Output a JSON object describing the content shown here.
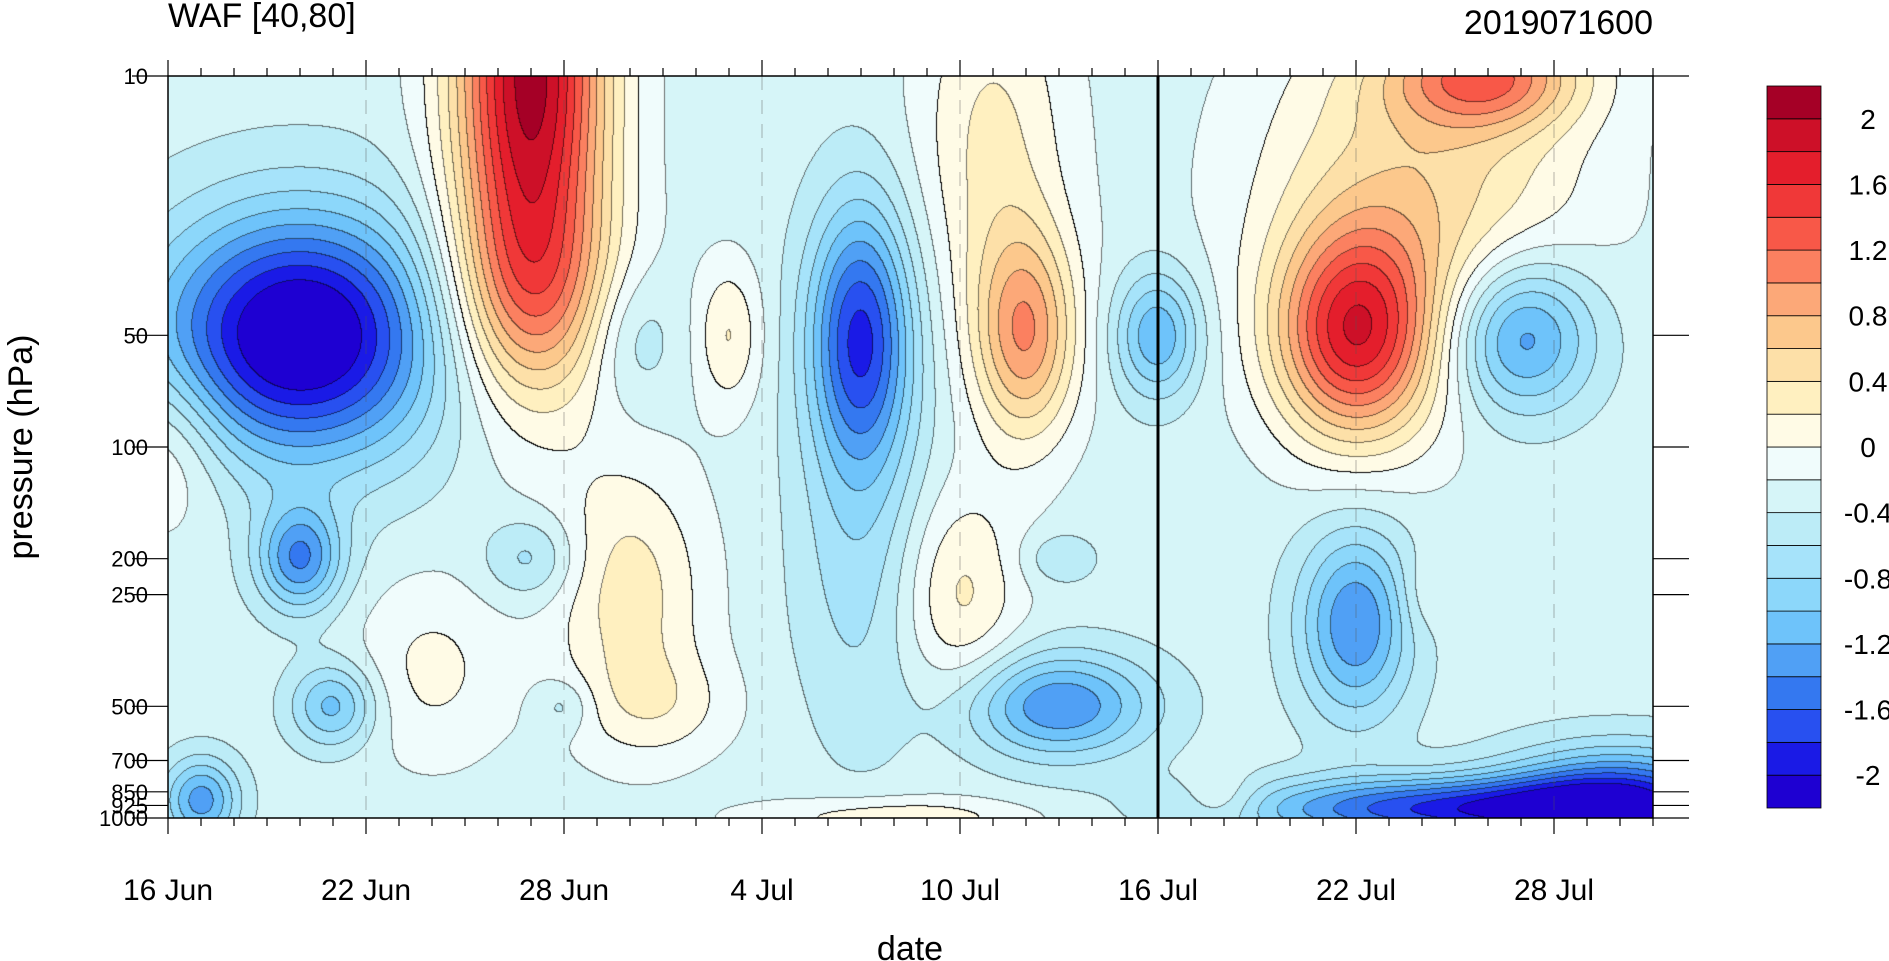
{
  "chart_data": {
    "type": "heatmap",
    "subtype": "filled-contour",
    "title": "WAF [40,80]",
    "date_label": "2019071600",
    "xlabel": "date",
    "ylabel": "pressure (hPa)",
    "y_scale": "log",
    "y_reversed": true,
    "x_range": [
      "2019-06-16",
      "2019-07-31"
    ],
    "y_range": [
      1000,
      10
    ],
    "x_ticks": [
      {
        "date": "2019-06-16",
        "label": "16 Jun"
      },
      {
        "date": "2019-06-22",
        "label": "22 Jun"
      },
      {
        "date": "2019-06-28",
        "label": "28 Jun"
      },
      {
        "date": "2019-07-04",
        "label": "4 Jul"
      },
      {
        "date": "2019-07-10",
        "label": "10 Jul"
      },
      {
        "date": "2019-07-16",
        "label": "16 Jul"
      },
      {
        "date": "2019-07-22",
        "label": "22 Jul"
      },
      {
        "date": "2019-07-28",
        "label": "28 Jul"
      }
    ],
    "y_ticks": [
      {
        "value": 10,
        "label": "10"
      },
      {
        "value": 50,
        "label": "50"
      },
      {
        "value": 100,
        "label": "100"
      },
      {
        "value": 200,
        "label": "200"
      },
      {
        "value": 250,
        "label": "250"
      },
      {
        "value": 500,
        "label": "500"
      },
      {
        "value": 700,
        "label": "700"
      },
      {
        "value": 850,
        "label": "850"
      },
      {
        "value": 925,
        "label": "925"
      },
      {
        "value": 1000,
        "label": "1000"
      }
    ],
    "vertical_marker_date": "2019-07-16",
    "contour_levels": [
      -2.2,
      -2.0,
      -1.8,
      -1.6,
      -1.4,
      -1.2,
      -1.0,
      -0.8,
      -0.6,
      -0.4,
      -0.2,
      0,
      0.2,
      0.4,
      0.6,
      0.8,
      1.0,
      1.2,
      1.4,
      1.6,
      1.8,
      2.0,
      2.2
    ],
    "colorbar": {
      "colors": [
        "#1e00d2",
        "#1a1ae6",
        "#2850f0",
        "#3478f0",
        "#50a0f5",
        "#6ec3fa",
        "#8cd7fa",
        "#a6e3fa",
        "#bcecf7",
        "#d6f5f8",
        "#f0fcfc",
        "#fffbe6",
        "#fff0c0",
        "#fde0a8",
        "#fcc88c",
        "#fca878",
        "#fb8060",
        "#f85848",
        "#f03838",
        "#e41e2c",
        "#cd1028",
        "#a50026"
      ],
      "labels": [
        "-2",
        "-1.6",
        "-1.2",
        "-0.8",
        "-0.4",
        "0",
        "0.4",
        "0.8",
        "1.2",
        "1.6",
        "2"
      ],
      "label_values": [
        -2.0,
        -1.6,
        -1.2,
        -0.8,
        -0.4,
        0,
        0.4,
        0.8,
        1.2,
        1.6,
        2.0
      ]
    },
    "features": [
      {
        "date": "2019-06-20",
        "pressure": 50,
        "value": -2.1,
        "date_spread": 3.0,
        "logp_spread": 0.23
      },
      {
        "date": "2019-06-27",
        "pressure": 10,
        "value": 2.4,
        "date_spread": 1.6,
        "logp_spread": 0.45
      },
      {
        "date": "2019-06-27",
        "pressure": 40,
        "value": 0.8,
        "date_spread": 2.0,
        "logp_spread": 0.2
      },
      {
        "date": "2019-06-16",
        "pressure": 100,
        "value": 0.45,
        "date_spread": 1.3,
        "logp_spread": 0.16
      },
      {
        "date": "2019-06-30",
        "pressure": 50,
        "value": -0.4,
        "date_spread": 1.0,
        "logp_spread": 0.14
      },
      {
        "date": "2019-07-03",
        "pressure": 50,
        "value": 0.5,
        "date_spread": 0.7,
        "logp_spread": 0.14
      },
      {
        "date": "2019-07-07",
        "pressure": 50,
        "value": -1.5,
        "date_spread": 1.1,
        "logp_spread": 0.25
      },
      {
        "date": "2019-07-07",
        "pressure": 200,
        "value": -0.4,
        "date_spread": 1.4,
        "logp_spread": 0.35
      },
      {
        "date": "2019-07-12",
        "pressure": 50,
        "value": 1.2,
        "date_spread": 1.1,
        "logp_spread": 0.2
      },
      {
        "date": "2019-07-11",
        "pressure": 15,
        "value": 0.55,
        "date_spread": 1.6,
        "logp_spread": 0.35
      },
      {
        "date": "2019-07-10",
        "pressure": 250,
        "value": 0.55,
        "date_spread": 1.3,
        "logp_spread": 0.2
      },
      {
        "date": "2019-07-16",
        "pressure": 50,
        "value": -0.9,
        "date_spread": 0.9,
        "logp_spread": 0.12
      },
      {
        "date": "2019-07-22",
        "pressure": 50,
        "value": 1.8,
        "date_spread": 1.7,
        "logp_spread": 0.2
      },
      {
        "date": "2019-07-24",
        "pressure": 20,
        "value": 0.8,
        "date_spread": 3.4,
        "logp_spread": 0.35
      },
      {
        "date": "2019-07-26",
        "pressure": 10,
        "value": 1.2,
        "date_spread": 2.0,
        "logp_spread": 0.1
      },
      {
        "date": "2019-07-27",
        "pressure": 50,
        "value": -1.2,
        "date_spread": 1.6,
        "logp_spread": 0.15
      },
      {
        "date": "2019-06-20",
        "pressure": 200,
        "value": -1.1,
        "date_spread": 0.9,
        "logp_spread": 0.1
      },
      {
        "date": "2019-06-27",
        "pressure": 200,
        "value": -0.45,
        "date_spread": 1.0,
        "logp_spread": 0.08
      },
      {
        "date": "2019-06-24",
        "pressure": 400,
        "value": 0.35,
        "date_spread": 1.7,
        "logp_spread": 0.18
      },
      {
        "date": "2019-06-30",
        "pressure": 250,
        "value": 0.6,
        "date_spread": 1.6,
        "logp_spread": 0.25
      },
      {
        "date": "2019-07-01",
        "pressure": 500,
        "value": 0.3,
        "date_spread": 1.6,
        "logp_spread": 0.1
      },
      {
        "date": "2019-06-28",
        "pressure": 500,
        "value": -0.3,
        "date_spread": 0.6,
        "logp_spread": 0.05
      },
      {
        "date": "2019-06-21",
        "pressure": 500,
        "value": -0.8,
        "date_spread": 0.9,
        "logp_spread": 0.08
      },
      {
        "date": "2019-07-13",
        "pressure": 500,
        "value": -1.1,
        "date_spread": 2.0,
        "logp_spread": 0.1
      },
      {
        "date": "2019-07-13",
        "pressure": 200,
        "value": -0.3,
        "date_spread": 0.8,
        "logp_spread": 0.05
      },
      {
        "date": "2019-07-22",
        "pressure": 300,
        "value": -1.1,
        "date_spread": 1.2,
        "logp_spread": 0.18
      },
      {
        "date": "2019-07-24",
        "pressure": 250,
        "value": 0.2,
        "date_spread": 0.5,
        "logp_spread": 0.08
      },
      {
        "date": "2019-07-25",
        "pressure": 950,
        "value": -1.5,
        "date_spread": 4.5,
        "logp_spread": 0.06
      },
      {
        "date": "2019-07-30",
        "pressure": 900,
        "value": -1.4,
        "date_spread": 2.5,
        "logp_spread": 0.1
      },
      {
        "date": "2019-07-18",
        "pressure": 900,
        "value": 0.35,
        "date_spread": 0.8,
        "logp_spread": 0.05
      },
      {
        "date": "2019-07-08",
        "pressure": 1000,
        "value": 0.45,
        "date_spread": 3.0,
        "logp_spread": 0.04
      },
      {
        "date": "2019-06-17",
        "pressure": 900,
        "value": -1.0,
        "date_spread": 0.8,
        "logp_spread": 0.08
      }
    ]
  }
}
